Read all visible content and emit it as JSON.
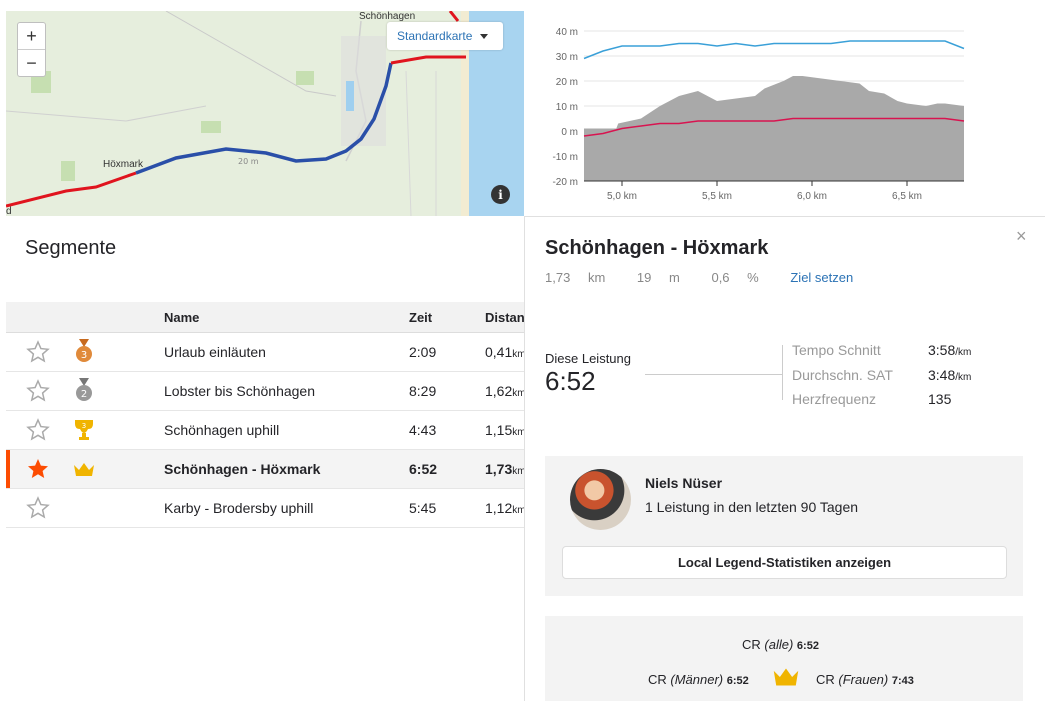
{
  "map": {
    "zoom_in": "+",
    "zoom_out": "−",
    "map_type": "Standardkarte",
    "towns": [
      {
        "label": "Schönhagen"
      },
      {
        "label": "Höxmark"
      }
    ],
    "road_label": "20 m",
    "info_icon": "i",
    "edge_label": "d"
  },
  "colors": {
    "accent": "#fc4c02",
    "route_red": "#e0141e",
    "route_blue": "#2a4fa8",
    "speed_line": "#3aa0d8",
    "hr_line": "#d81450",
    "elevation_fill": "#a9a9a9",
    "link": "#2c73b5",
    "gold": "#f0b400"
  },
  "chart_data": {
    "type": "area",
    "y_ticks": [
      "40 m",
      "30 m",
      "20 m",
      "10 m",
      "0 m",
      "-10 m",
      "-20 m"
    ],
    "x_ticks": [
      "5,0 km",
      "5,5 km",
      "6,0 km",
      "6,5 km"
    ],
    "xlim": [
      4.8,
      6.8
    ],
    "ylim": [
      -20,
      40
    ],
    "grid": "horizontal",
    "elevation": {
      "x": [
        4.8,
        4.97,
        4.98,
        5.1,
        5.2,
        5.3,
        5.4,
        5.5,
        5.6,
        5.7,
        5.75,
        5.85,
        5.9,
        5.95,
        6.05,
        6.15,
        6.25,
        6.3,
        6.38,
        6.45,
        6.5,
        6.6,
        6.66,
        6.7,
        6.8
      ],
      "y": [
        1,
        1,
        3,
        5,
        10,
        14,
        16,
        12,
        13,
        14,
        17,
        20,
        22,
        22,
        21,
        20,
        19,
        16,
        15,
        12,
        11,
        10,
        11,
        11,
        10
      ]
    },
    "series": [
      {
        "x": [
          4.8,
          4.9,
          5.0,
          5.1,
          5.2,
          5.3,
          5.4,
          5.5,
          5.6,
          5.7,
          5.8,
          5.9,
          6.0,
          6.1,
          6.2,
          6.3,
          6.4,
          6.5,
          6.6,
          6.7,
          6.8
        ],
        "values": [
          29,
          32,
          34,
          34,
          34,
          35,
          35,
          34,
          35,
          34,
          35,
          35,
          35,
          35,
          36,
          36,
          36,
          36,
          36,
          36,
          33
        ]
      },
      {
        "x": [
          4.8,
          4.9,
          5.0,
          5.1,
          5.2,
          5.3,
          5.4,
          5.5,
          5.6,
          5.7,
          5.8,
          5.9,
          6.0,
          6.1,
          6.2,
          6.3,
          6.4,
          6.5,
          6.6,
          6.7,
          6.8
        ],
        "values": [
          -2,
          -1,
          1,
          2,
          3,
          3,
          4,
          4,
          4,
          4,
          4,
          5,
          5,
          5,
          5,
          5,
          5,
          5,
          5,
          5,
          4
        ]
      }
    ]
  },
  "segments": {
    "title": "Segmente",
    "columns": {
      "name": "Name",
      "time": "Zeit",
      "distance": "Distan"
    },
    "rows": [
      {
        "name": "Urlaub einläuten",
        "time": "2:09",
        "dist": "0,41",
        "unit": "km",
        "medal": "bronze-medal-3"
      },
      {
        "name": "Lobster bis Schönhagen",
        "time": "8:29",
        "dist": "1,62",
        "unit": "km",
        "medal": "gray-medal-2"
      },
      {
        "name": "Schönhagen uphill",
        "time": "4:43",
        "dist": "1,15",
        "unit": "km",
        "medal": "gold-trophy-3"
      },
      {
        "name": "Schönhagen - Höxmark",
        "time": "6:52",
        "dist": "1,73",
        "unit": "km",
        "medal": "crown"
      },
      {
        "name": "Karby - Brodersby uphill",
        "time": "5:45",
        "dist": "1,12",
        "unit": "km",
        "medal": "none"
      }
    ]
  },
  "detail": {
    "title": "Schönhagen - Höxmark",
    "distance": "1,73",
    "distance_unit": "km",
    "elevation": "19",
    "elevation_unit": "m",
    "grade": "0,6",
    "grade_unit": "%",
    "set_goal": "Ziel setzen",
    "close": "×",
    "performance_label": "Diese Leistung",
    "performance_time": "6:52",
    "metrics": [
      {
        "label": "Tempo Schnitt",
        "value": "3:58",
        "unit": "/km"
      },
      {
        "label": "Durchschn. SAT",
        "value": "3:48",
        "unit": "/km"
      },
      {
        "label": "Herzfrequenz",
        "value": "135",
        "unit": ""
      }
    ],
    "local_legend": {
      "name": "Niels Nüser",
      "subtitle": "1 Leistung in den letzten 90 Tagen",
      "button": "Local Legend-Statistiken anzeigen"
    },
    "cr": {
      "all_prefix": "CR ",
      "all_label": "(alle)",
      "all_value": "6:52",
      "men_prefix": "CR ",
      "men_label": "(Männer)",
      "men_value": "6:52",
      "women_prefix": "CR ",
      "women_label": "(Frauen)",
      "women_value": "7:43"
    }
  }
}
